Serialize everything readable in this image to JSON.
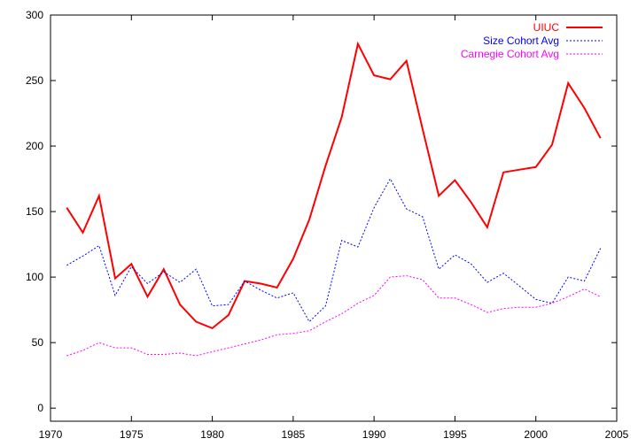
{
  "chart_data": {
    "type": "line",
    "title": "",
    "xlabel": "",
    "ylabel": "",
    "xlim": [
      1970,
      2005
    ],
    "ylim": [
      -10,
      300
    ],
    "xticks": [
      1970,
      1975,
      1980,
      1985,
      1990,
      1995,
      2000,
      2005
    ],
    "yticks": [
      0,
      50,
      100,
      150,
      200,
      250,
      300
    ],
    "grid": false,
    "legend_position": "top-right",
    "x": [
      1971,
      1972,
      1973,
      1974,
      1975,
      1976,
      1977,
      1978,
      1979,
      1980,
      1981,
      1982,
      1983,
      1984,
      1985,
      1986,
      1987,
      1988,
      1989,
      1990,
      1991,
      1992,
      1993,
      1994,
      1995,
      1996,
      1997,
      1998,
      1999,
      2000,
      2001,
      2002,
      2003,
      2004
    ],
    "series": [
      {
        "name": "UIUC",
        "color": "#ff0000",
        "style": "solid",
        "values": [
          153,
          134,
          162,
          99,
          110,
          85,
          106,
          79,
          66,
          61,
          71,
          97,
          95,
          92,
          114,
          144,
          185,
          222,
          278,
          254,
          251,
          265,
          213,
          162,
          174,
          157,
          138,
          180,
          182,
          184,
          201,
          248,
          229,
          206
        ]
      },
      {
        "name": "Size Cohort Avg",
        "color": "#0000ff",
        "style": "dotted",
        "values": [
          109,
          116,
          124,
          86,
          108,
          95,
          104,
          96,
          106,
          78,
          79,
          97,
          90,
          84,
          88,
          66,
          78,
          128,
          123,
          153,
          175,
          152,
          146,
          106,
          117,
          110,
          96,
          103,
          93,
          83,
          80,
          100,
          97,
          122
        ]
      },
      {
        "name": "Carnegie Cohort Avg",
        "color": "#ff00ff",
        "style": "dotted",
        "values": [
          40,
          44,
          50,
          46,
          46,
          41,
          41,
          42,
          40,
          43,
          46,
          49,
          52,
          56,
          57,
          59,
          66,
          72,
          80,
          86,
          100,
          101,
          98,
          84,
          84,
          79,
          73,
          76,
          77,
          77,
          80,
          85,
          91,
          85
        ]
      }
    ]
  }
}
